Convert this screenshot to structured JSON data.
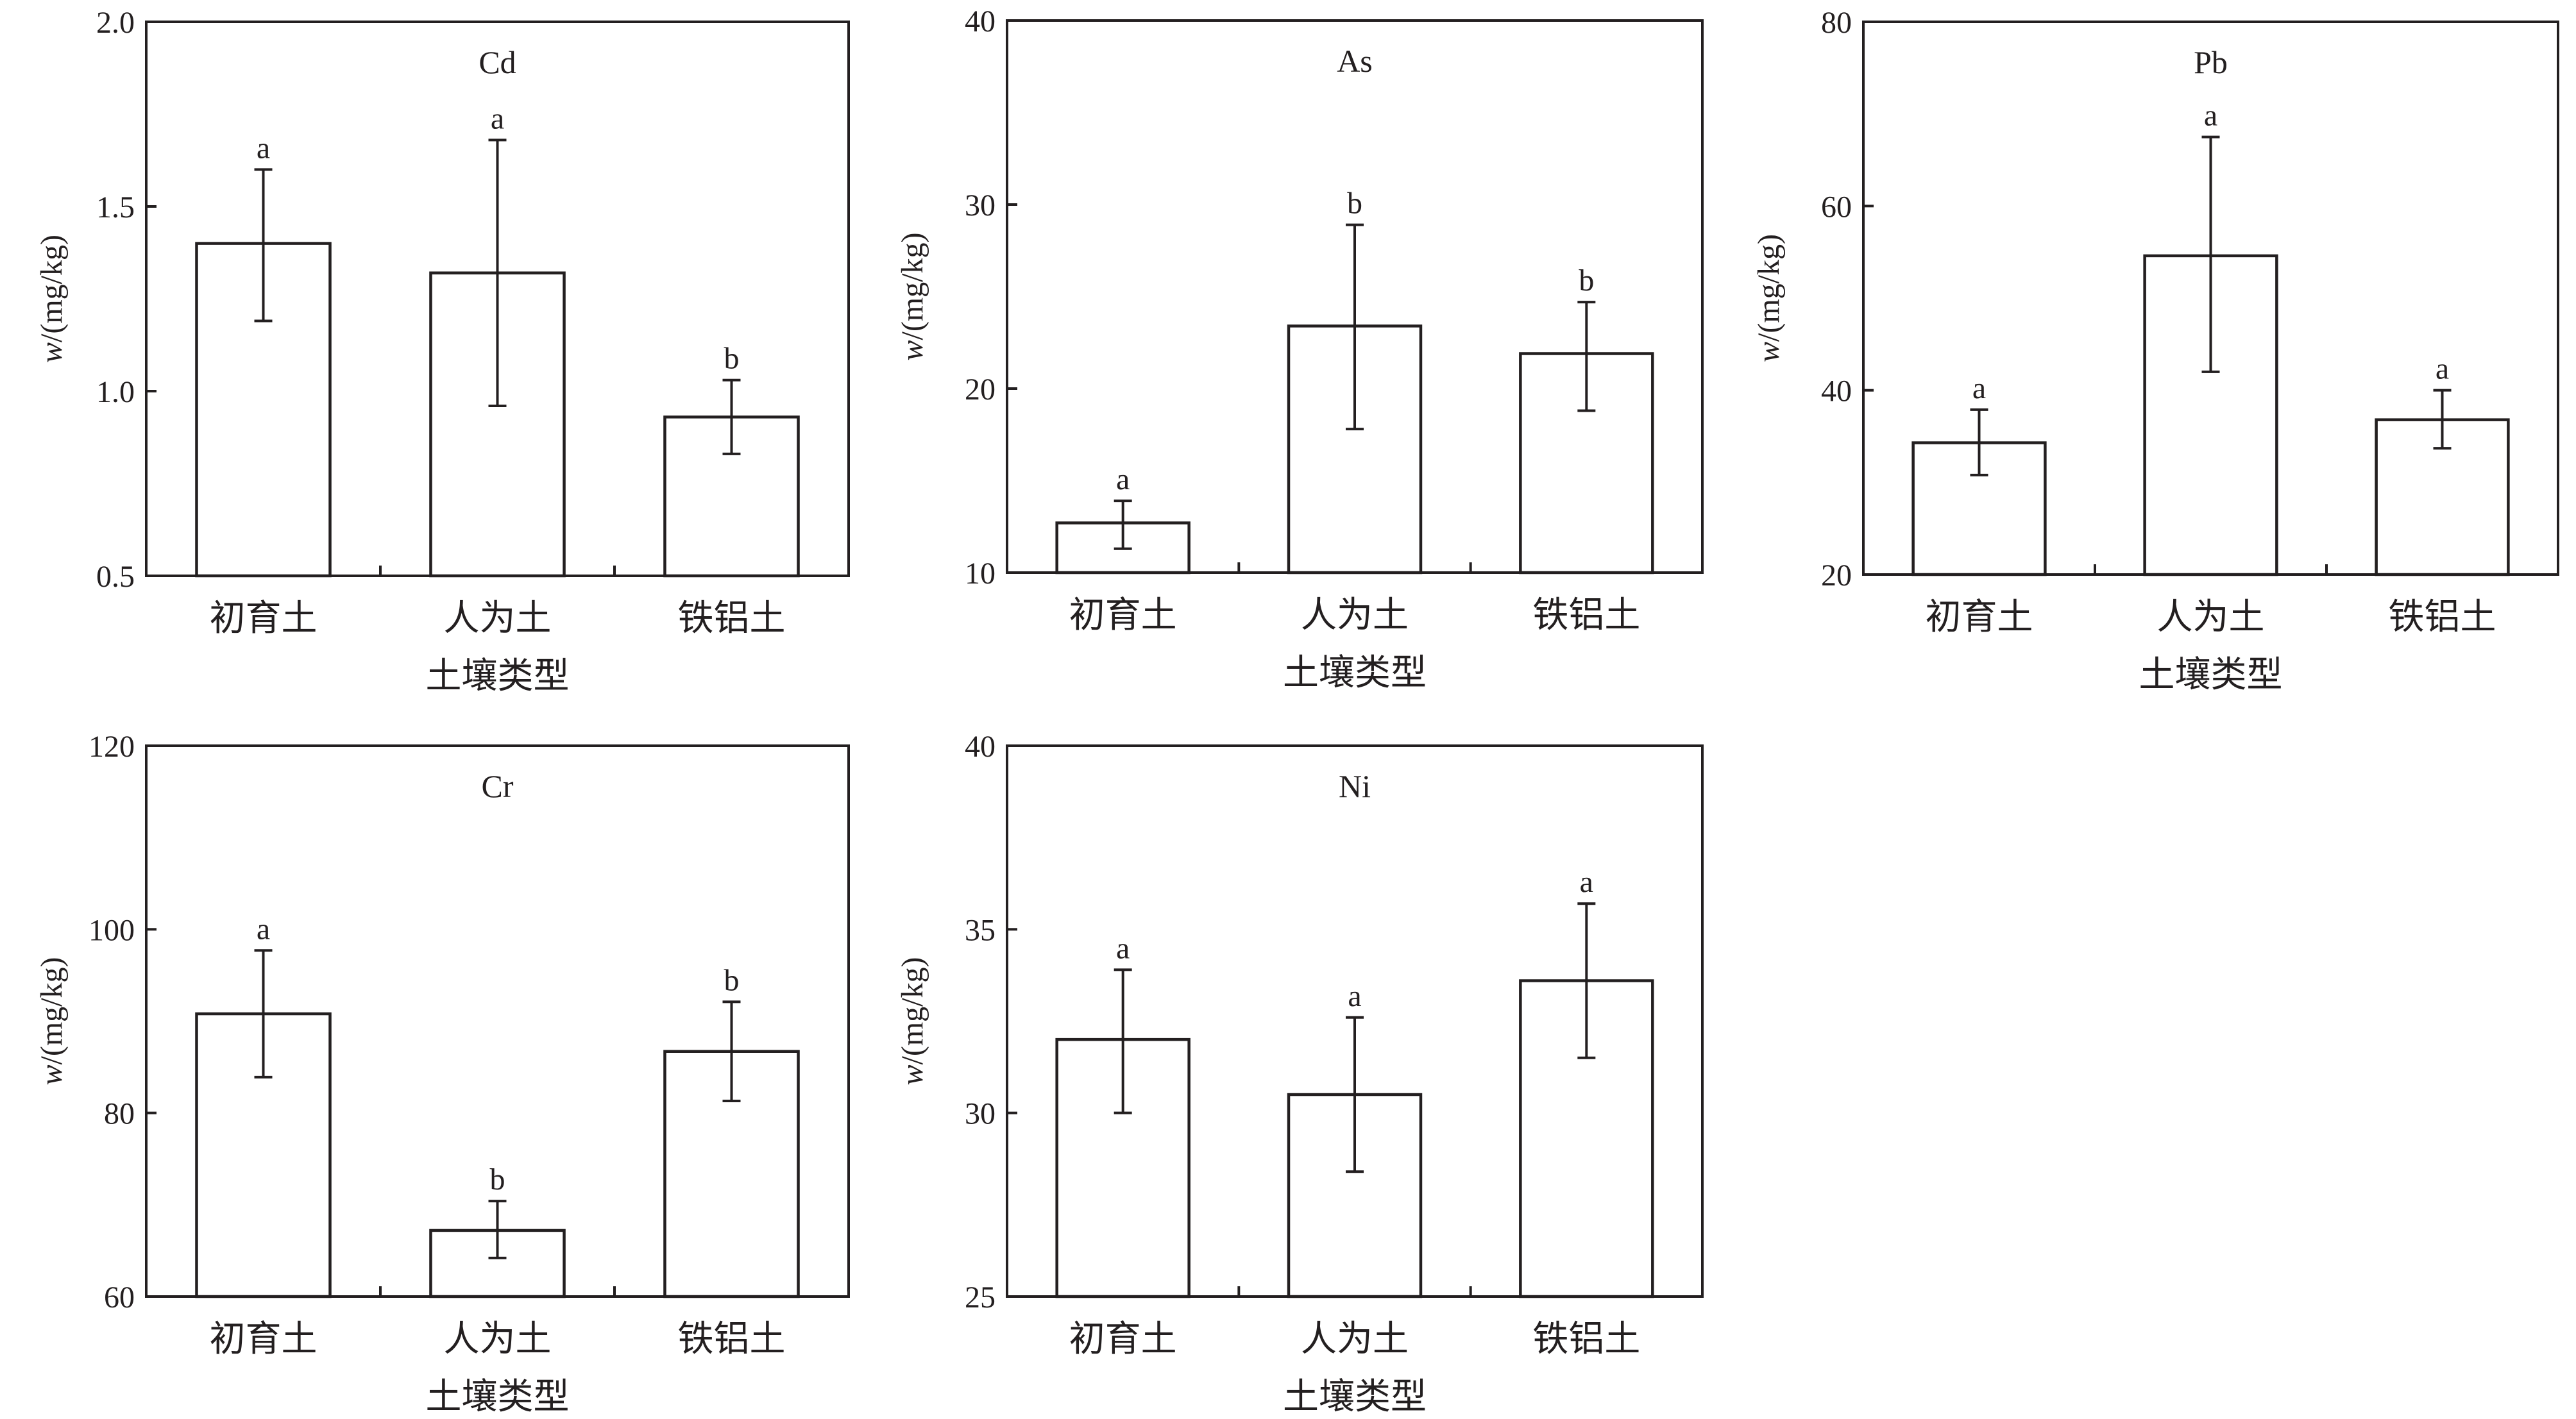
{
  "chart_data": [
    {
      "type": "bar",
      "title": "Cd",
      "categories": [
        "初育土",
        "人为土",
        "铁铝土"
      ],
      "values": [
        1.4,
        1.32,
        0.93
      ],
      "error_low": [
        1.19,
        0.96,
        0.83
      ],
      "error_high": [
        1.6,
        1.68,
        1.03
      ],
      "significance": [
        "a",
        "a",
        "b"
      ],
      "ylim": [
        0.5,
        2.0
      ],
      "yticks": [
        0.5,
        1.0,
        1.5,
        2.0
      ],
      "ytick_labels": [
        "0.5",
        "1.0",
        "1.5",
        "2.0"
      ],
      "ylabel_italic": "w",
      "ylabel_unit": "/(mg/kg)",
      "xlabel": "土壤类型"
    },
    {
      "type": "bar",
      "title": "As",
      "categories": [
        "初育土",
        "人为土",
        "铁铝土"
      ],
      "values": [
        12.7,
        23.4,
        21.9
      ],
      "error_low": [
        11.3,
        17.8,
        18.8
      ],
      "error_high": [
        13.9,
        28.9,
        24.7
      ],
      "significance": [
        "a",
        "b",
        "b"
      ],
      "ylim": [
        10,
        40
      ],
      "yticks": [
        10,
        20,
        30,
        40
      ],
      "ytick_labels": [
        "10",
        "20",
        "30",
        "40"
      ],
      "ylabel_italic": "w",
      "ylabel_unit": "/(mg/kg)",
      "xlabel": "土壤类型"
    },
    {
      "type": "bar",
      "title": "Pb",
      "categories": [
        "初育土",
        "人为土",
        "铁铝土"
      ],
      "values": [
        34.3,
        54.6,
        36.8
      ],
      "error_low": [
        30.8,
        42.0,
        33.7
      ],
      "error_high": [
        37.9,
        67.5,
        40.0
      ],
      "significance": [
        "a",
        "a",
        "a"
      ],
      "ylim": [
        20,
        80
      ],
      "yticks": [
        20,
        40,
        60,
        80
      ],
      "ytick_labels": [
        "20",
        "40",
        "60",
        "80"
      ],
      "ylabel_italic": "w",
      "ylabel_unit": "/(mg/kg)",
      "xlabel": "土壤类型"
    },
    {
      "type": "bar",
      "title": "Cr",
      "categories": [
        "初育土",
        "人为土",
        "铁铝土"
      ],
      "values": [
        90.8,
        67.2,
        86.7
      ],
      "error_low": [
        83.9,
        64.2,
        81.3
      ],
      "error_high": [
        97.7,
        70.4,
        92.1
      ],
      "significance": [
        "a",
        "b",
        "b"
      ],
      "ylim": [
        60,
        120
      ],
      "yticks": [
        60,
        80,
        100,
        120
      ],
      "ytick_labels": [
        "60",
        "80",
        "100",
        "120"
      ],
      "ylabel_italic": "w",
      "ylabel_unit": "/(mg/kg)",
      "xlabel": "土壤类型"
    },
    {
      "type": "bar",
      "title": "Ni",
      "categories": [
        "初育土",
        "人为土",
        "铁铝土"
      ],
      "values": [
        32.0,
        30.5,
        33.6
      ],
      "error_low": [
        30.0,
        28.4,
        31.5
      ],
      "error_high": [
        33.9,
        32.6,
        35.7
      ],
      "significance": [
        "a",
        "a",
        "a"
      ],
      "ylim": [
        25,
        40
      ],
      "yticks": [
        25,
        30,
        35,
        40
      ],
      "ytick_labels": [
        "25",
        "30",
        "35",
        "40"
      ],
      "ylabel_italic": "w",
      "ylabel_unit": "/(mg/kg)",
      "xlabel": "土壤类型"
    }
  ]
}
